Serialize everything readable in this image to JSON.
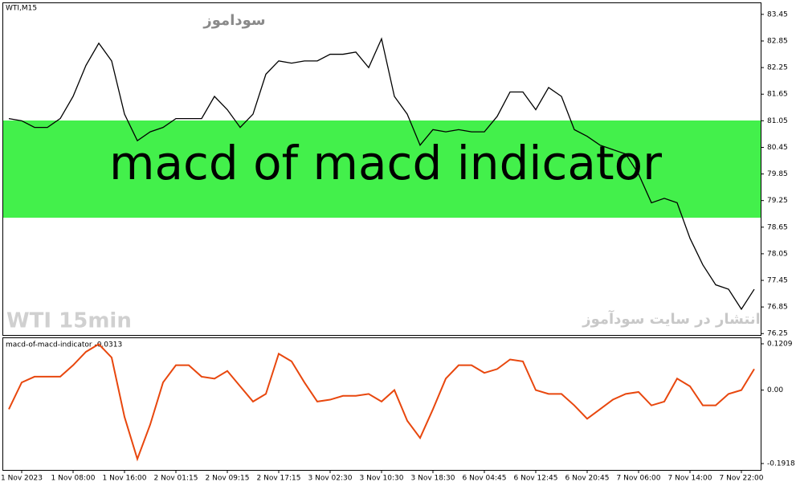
{
  "chart_data": [
    {
      "type": "line",
      "title": "WTI,M15",
      "color": "#000000",
      "values": [
        81.1,
        81.05,
        80.9,
        80.9,
        81.1,
        81.6,
        82.3,
        82.8,
        82.4,
        81.2,
        80.6,
        80.8,
        80.9,
        81.1,
        81.1,
        81.1,
        81.6,
        81.3,
        80.9,
        81.2,
        82.1,
        82.4,
        82.35,
        82.4,
        82.4,
        82.55,
        82.55,
        82.6,
        82.25,
        82.9,
        81.6,
        81.2,
        80.5,
        80.85,
        80.8,
        80.85,
        80.8,
        80.8,
        81.15,
        81.7,
        81.7,
        81.3,
        81.8,
        81.6,
        80.85,
        80.7,
        80.5,
        80.4,
        80.3,
        79.85,
        79.2,
        79.3,
        79.2,
        78.4,
        77.8,
        77.35,
        77.25,
        76.8,
        77.25
      ],
      "ylim": [
        76.2,
        83.72
      ],
      "yticks": [
        83.45,
        82.85,
        82.25,
        81.65,
        81.05,
        80.45,
        79.85,
        79.25,
        78.65,
        78.05,
        77.45,
        76.85,
        76.25
      ]
    },
    {
      "type": "line",
      "title": "macd-of-macd-indicator -0.0313",
      "color": "#e8470e",
      "categories": [
        null,
        "1 Nov 2023",
        null,
        null,
        null,
        "1 Nov 08:00",
        null,
        null,
        null,
        "1 Nov 16:00",
        null,
        null,
        null,
        "2 Nov 01:15",
        null,
        null,
        null,
        "2 Nov 09:15",
        null,
        null,
        null,
        "2 Nov 17:15",
        null,
        null,
        null,
        "3 Nov 02:30",
        null,
        null,
        null,
        "3 Nov 10:30",
        null,
        null,
        null,
        "3 Nov 18:30",
        null,
        null,
        null,
        "6 Nov 04:45",
        null,
        null,
        null,
        "6 Nov 12:45",
        null,
        null,
        null,
        "6 Nov 20:45",
        null,
        null,
        null,
        "7 Nov 06:00",
        null,
        null,
        null,
        "7 Nov 14:00",
        null,
        null,
        null,
        "7 Nov 22:00",
        null
      ],
      "values": [
        -0.05,
        0.02,
        0.035,
        0.035,
        0.035,
        0.065,
        0.1,
        0.12,
        0.085,
        -0.07,
        -0.18,
        -0.09,
        0.02,
        0.065,
        0.065,
        0.035,
        0.03,
        0.05,
        0.01,
        -0.03,
        -0.01,
        0.095,
        0.075,
        0.02,
        -0.03,
        -0.025,
        -0.015,
        -0.015,
        -0.01,
        -0.03,
        0.0,
        -0.08,
        -0.125,
        -0.05,
        0.03,
        0.065,
        0.065,
        0.045,
        0.055,
        0.08,
        0.075,
        0.0,
        -0.01,
        -0.01,
        -0.04,
        -0.075,
        -0.05,
        -0.025,
        -0.01,
        -0.005,
        -0.04,
        -0.03,
        0.03,
        0.01,
        -0.04,
        -0.04,
        -0.01,
        0.0,
        0.055
      ],
      "ylim": [
        -0.2086,
        0.1377
      ],
      "yticks": [
        0.1209,
        {
          "value": 0,
          "label": "0.00"
        },
        -0.1918
      ]
    }
  ],
  "banner": "macd of macd indicator",
  "watermarks": [
    "سوداموز",
    "WTI 15min",
    "انتشار در سایت سودآموز"
  ]
}
